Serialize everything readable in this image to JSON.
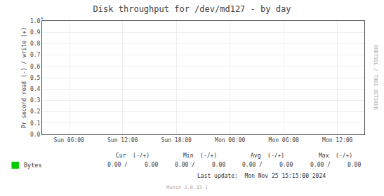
{
  "chart_data": {
    "type": "line",
    "title": "Disk throughput for /dev/md127 - by day",
    "y_label": "Pr second read (-) / write (+)",
    "categories": [
      "Sun 06:00",
      "Sun 12:00",
      "Sun 18:00",
      "Mon 00:00",
      "Mon 06:00",
      "Mon 12:00"
    ],
    "series": [
      {
        "name": "Bytes",
        "color": "#00cc00",
        "values": [
          null,
          null,
          null,
          null,
          null,
          null
        ]
      }
    ],
    "ylim": [
      0.0,
      1.0
    ],
    "yticks": [
      {
        "value": 0.0,
        "label": "0.0"
      },
      0.1,
      0.2,
      0.3,
      0.4,
      0.5,
      0.6,
      0.7,
      0.8,
      0.9,
      {
        "value": 1.0,
        "label": "1.0"
      }
    ],
    "grid": true,
    "annotations": [
      "Cur  (-/+)",
      "Min  (-/+)",
      "Avg  (-/+)",
      "Max  (-/+)",
      "0.00 /     0.00",
      "0.00 /     0.00",
      "0.00 /     0.00",
      "0.00 /     0.00",
      "Last update:  Mon Nov 25 15:15:00 2024",
      "Munin 2.0.33-1",
      "RRDTOOL / TOBI OETIKER",
      "▲"
    ]
  }
}
